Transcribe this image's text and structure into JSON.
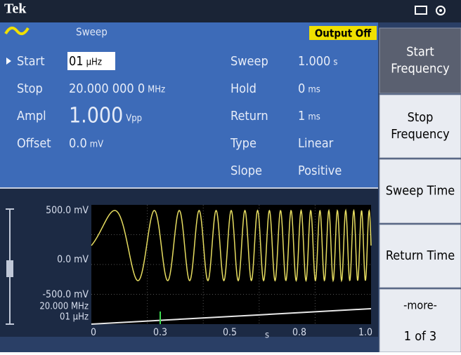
{
  "header": {
    "brand": "Tek"
  },
  "mode": {
    "label": "Sweep",
    "status": "Output Off"
  },
  "params_left": [
    {
      "label": "Start",
      "value": "01",
      "unit": "µHz"
    },
    {
      "label": "Stop",
      "value": "20.000 000 0",
      "unit": "MHz"
    },
    {
      "label": "Ampl",
      "value": "1.000",
      "unit": "Vpp"
    },
    {
      "label": "Offset",
      "value": "0.0",
      "unit": "mV"
    }
  ],
  "params_right": [
    {
      "label": "Sweep",
      "value": "1.000",
      "unit": "s"
    },
    {
      "label": "Hold",
      "value": "0",
      "unit": "ms"
    },
    {
      "label": "Return",
      "value": "1",
      "unit": "ms"
    },
    {
      "label": "Type",
      "value": "Linear"
    },
    {
      "label": "Slope",
      "value": "Positive"
    }
  ],
  "plot": {
    "y_labels": [
      "500.0 mV",
      "0.0 mV",
      "-500.0 mV"
    ],
    "freq_labels": [
      "20.000 MHz",
      "01 µHz"
    ],
    "x_labels": [
      "0",
      "0.3",
      "0.5",
      "0.8",
      "1.0"
    ],
    "x_unit": "s"
  },
  "menu": [
    {
      "lines": [
        "Start",
        "Frequency"
      ]
    },
    {
      "lines": [
        "Stop",
        "Frequency"
      ]
    },
    {
      "lines": [
        "Sweep Time"
      ]
    },
    {
      "lines": [
        "Return Time"
      ]
    },
    {
      "lines": [
        "-more-",
        "1 of 3"
      ]
    }
  ]
}
